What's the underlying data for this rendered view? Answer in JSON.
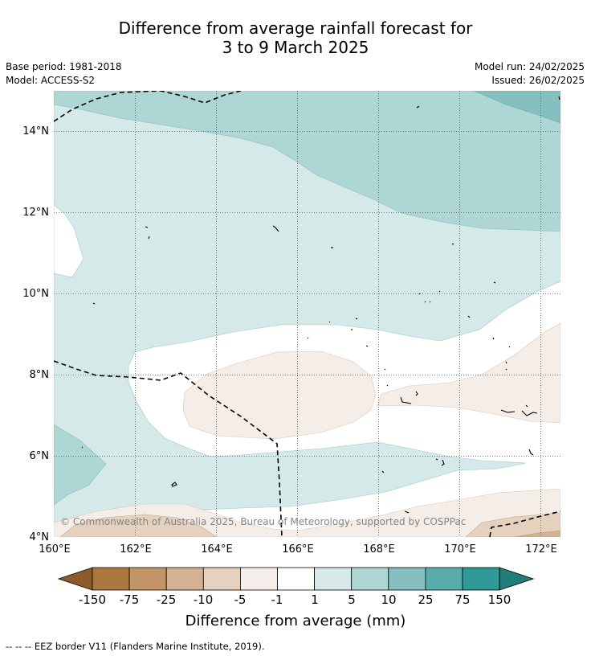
{
  "title": {
    "line1": "Difference from average rainfall forecast for",
    "line2": "3 to 9 March 2025"
  },
  "meta": {
    "base_period": "Base period: 1981-2018",
    "model": "Model: ACCESS-S2",
    "model_run": "Model run: 24/02/2025",
    "issued": "Issued: 26/02/2025"
  },
  "map": {
    "lon_ticks": [
      "160°E",
      "162°E",
      "164°E",
      "166°E",
      "168°E",
      "170°E",
      "172°E"
    ],
    "lat_ticks": [
      "4°N",
      "6°N",
      "8°N",
      "10°N",
      "12°N",
      "14°N"
    ],
    "copyright": "© Commonwealth of Australia 2025, Bureau of Meteorology, supported by COSPPac"
  },
  "colorbar": {
    "labels": [
      "-150",
      "-75",
      "-25",
      "-10",
      "-5",
      "-1",
      "1",
      "5",
      "10",
      "25",
      "75",
      "150"
    ],
    "colors": [
      "#8c5a2b",
      "#ad7840",
      "#c29466",
      "#d3b294",
      "#e5d1be",
      "#f5ede7",
      "#ffffff",
      "#d5e9e8",
      "#add6d5",
      "#85bfbf",
      "#58acab",
      "#319996",
      "#1f7d7a"
    ],
    "label": "Difference from average (mm)"
  },
  "footnote": "--  --  -- EEZ border V11 (Flanders Marine Institute, 2019)."
}
